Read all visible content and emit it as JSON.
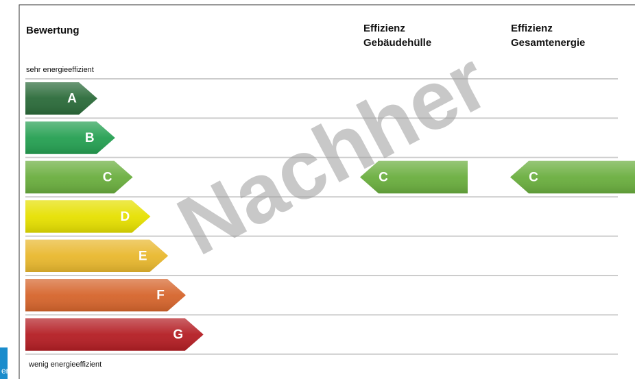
{
  "header": {
    "rating": "Bewertung",
    "columns": [
      [
        "Effizienz",
        "Gebäudehülle"
      ],
      [
        "Effizienz",
        "Gesamtenergie"
      ]
    ]
  },
  "scale_top": "sehr energieeffizient",
  "scale_bottom": "wenig energieeffizient",
  "classes": [
    {
      "label": "A",
      "color": "#2b6b3a"
    },
    {
      "label": "B",
      "color": "#25a052"
    },
    {
      "label": "C",
      "color": "#6aae3e"
    },
    {
      "label": "D",
      "color": "#e6e000"
    },
    {
      "label": "E",
      "color": "#e9b82e"
    },
    {
      "label": "F",
      "color": "#d6652c"
    },
    {
      "label": "G",
      "color": "#b41e24"
    }
  ],
  "ratings": [
    "C",
    "C"
  ],
  "watermark": "Nachher",
  "side_fragment": "er"
}
